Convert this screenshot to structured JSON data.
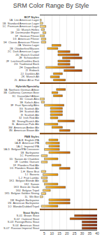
{
  "chart_data": {
    "type": "bar",
    "orientation": "horizontal",
    "title": "SRM Color Range By Style",
    "categories": [
      "BCP Styles",
      "1A  Lite American Lager",
      "1B  Standard American Lager",
      "1C  Premium American Lager",
      "1D  Munich Helles",
      "1E  Dortmunder Export",
      "1F  German Pilsner",
      "1G  American Pilsner",
      "1H  Classic American Pilsner",
      "2A  Vienna Lager",
      "2B  Oktoberfest/Marzen",
      "2C  Dark American Lager",
      "2D  Munich Dunkel",
      "2E  Schwarzbier",
      "2F  Leichtes/Dunkles Bock",
      "2G  Traditional Bock",
      "2H  Doppelbock",
      "2I  Eisbock",
      "2J  Dunkles Alt",
      "2K  Munich Alt",
      "2L  Altbier Alt or Rot",
      null,
      "Hybrids/Specialty",
      "3A  Northern German Altbier",
      "3B  California Common Beer",
      "3C  Dusseldorf Altbier",
      "3D  Cream Ales",
      "3E  Kolsch Ales",
      "3F  Fruit Specialty/Ales",
      "3G  Scottish Ale",
      "3H  Scottish Ale",
      "3I  Scottish Ale",
      "3J  Irish Red Ale",
      "3K  Strong/Scotch Ale",
      "3L  American Pale Ale",
      "3M  American Amber Ale",
      "3N  American Brown Ale",
      null,
      "PAB Styles",
      "1A-B  English IPA",
      "1A-B  American IPA",
      "1A-C  Imperial IPA",
      "1A-D  Belgian/IPA Crossover",
      "1B  Barleywine",
      "1C  Farmhouse",
      "1D  Saison de Chambre",
      "1E  Lambic Gueuze",
      "1F  Flanders Red Ale",
      "1G  Flanders Brown Ale",
      "1-H  Biere Brut",
      "1-I  Bavaria",
      "1-J  Fruit Lambic",
      "1K1  Belgian Blonde Ale",
      "1K2  Saison",
      "1K3  Biere de Garde",
      "1K4  Belgian Tripel",
      "1K5  Belgian Golden Strong",
      "1L  Wit Bier",
      "1M  English Barleywine",
      "1N  American Barleywine",
      "1O  Blonde/Dubbel/Tripel",
      null,
      "Stout Styles",
      "S-01  Brown Stout",
      "S-02  Oatmeal Stout",
      "S-03  Foreign/Extra Stout",
      "S-04  American Stout",
      "S-07  Russian Imperial Stout"
    ],
    "low": [
      null,
      2,
      2,
      2,
      3,
      4,
      2,
      3,
      3,
      10,
      7,
      14,
      14,
      17,
      14,
      14,
      6,
      18,
      11,
      9,
      11,
      null,
      null,
      13,
      10,
      11,
      2,
      3,
      5,
      9,
      9,
      9,
      9,
      14,
      5,
      10,
      15,
      null,
      null,
      8,
      6,
      8,
      5,
      8,
      3,
      5,
      3,
      10,
      15,
      3,
      4,
      3,
      4,
      5,
      6,
      4,
      3,
      2,
      8,
      8,
      3,
      null,
      null,
      25,
      22,
      30,
      30,
      30
    ],
    "high": [
      null,
      3,
      4,
      6,
      5,
      6,
      5,
      6,
      6,
      16,
      14,
      22,
      28,
      30,
      22,
      22,
      25,
      30,
      17,
      15,
      19,
      null,
      null,
      19,
      14,
      17,
      5,
      5,
      18,
      17,
      17,
      17,
      14,
      25,
      14,
      17,
      22,
      null,
      null,
      14,
      15,
      15,
      15,
      22,
      7,
      14,
      7,
      16,
      22,
      6,
      14,
      7,
      7,
      14,
      19,
      9,
      6,
      4,
      22,
      22,
      14,
      null,
      null,
      40,
      40,
      40,
      40,
      40
    ],
    "xlim": [
      2,
      40
    ],
    "xticks": [
      5,
      10,
      15,
      20,
      25,
      30,
      35,
      40
    ],
    "grid": true,
    "srm_colors": [
      [
        2,
        "#FFE699"
      ],
      [
        3,
        "#FFD878"
      ],
      [
        4,
        "#FFCA5A"
      ],
      [
        5,
        "#FFBF42"
      ],
      [
        6,
        "#FBB123"
      ],
      [
        7,
        "#F8A600"
      ],
      [
        8,
        "#F39C00"
      ],
      [
        9,
        "#EA8F00"
      ],
      [
        10,
        "#E58500"
      ],
      [
        11,
        "#DE7C00"
      ],
      [
        12,
        "#D77200"
      ],
      [
        13,
        "#CF6900"
      ],
      [
        14,
        "#CB6200"
      ],
      [
        15,
        "#C35900"
      ],
      [
        16,
        "#BB5100"
      ],
      [
        17,
        "#B54C00"
      ],
      [
        18,
        "#B04500"
      ],
      [
        19,
        "#A63E00"
      ],
      [
        20,
        "#A13700"
      ],
      [
        21,
        "#9B3200"
      ],
      [
        22,
        "#952D00"
      ],
      [
        23,
        "#8E2900"
      ],
      [
        24,
        "#882300"
      ],
      [
        25,
        "#821E00"
      ],
      [
        26,
        "#7B1A00"
      ],
      [
        27,
        "#771900"
      ],
      [
        28,
        "#701400"
      ],
      [
        29,
        "#6A0F00"
      ],
      [
        30,
        "#660D00"
      ],
      [
        35,
        "#580907"
      ],
      [
        40,
        "#440607"
      ]
    ]
  }
}
